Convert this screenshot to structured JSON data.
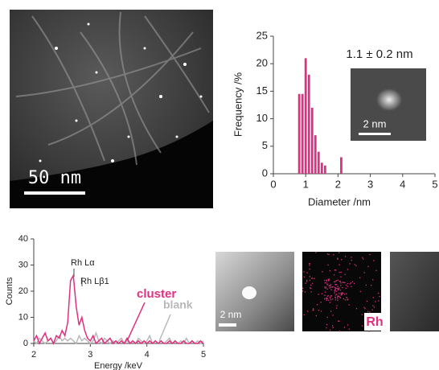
{
  "chart_data": [
    {
      "type": "histogram",
      "x_label": "Diameter /nm",
      "y_label": "Frequency /%",
      "annotation": "1.1 ± 0.2 nm",
      "inset_scale": "2 nm",
      "bins": [
        0.75,
        0.85,
        0.95,
        1.05,
        1.15,
        1.25,
        1.35,
        1.45,
        1.55,
        1.65,
        1.75,
        1.85,
        1.95,
        2.05,
        2.15
      ],
      "counts": [
        14.5,
        14.5,
        21,
        18,
        12,
        7,
        4,
        2,
        1.5,
        0,
        0,
        0,
        0,
        3
      ],
      "color": "#e0307f",
      "xlim": [
        0,
        5
      ],
      "xticks": [
        0,
        1,
        2,
        3,
        4,
        5
      ],
      "ylim": [
        0,
        25
      ],
      "yticks": [
        0,
        5,
        10,
        15,
        20,
        25
      ]
    },
    {
      "type": "line",
      "x_label": "Energy /keV",
      "y_label": "Counts",
      "annotations": [
        "Rh Lα",
        "Rh Lβ1",
        "cluster",
        "blank"
      ],
      "x": [
        2.0,
        2.05,
        2.1,
        2.15,
        2.2,
        2.25,
        2.3,
        2.35,
        2.4,
        2.45,
        2.5,
        2.55,
        2.6,
        2.65,
        2.7,
        2.75,
        2.8,
        2.85,
        2.9,
        2.95,
        3.0,
        3.05,
        3.1,
        3.15,
        3.2,
        3.25,
        3.3,
        3.35,
        3.4,
        3.45,
        3.5,
        3.55,
        3.6,
        3.65,
        3.7,
        3.75,
        3.8,
        3.85,
        3.9,
        3.95,
        4.0,
        4.05,
        4.1,
        4.15,
        4.2,
        4.25,
        4.3,
        4.35,
        4.4,
        4.45,
        4.5,
        4.55,
        4.6,
        4.65,
        4.7,
        4.75,
        4.8,
        4.85,
        4.9,
        4.95,
        5.0
      ],
      "series": [
        {
          "name": "blank",
          "color": "#b8b8b8",
          "values": [
            1,
            0,
            2,
            1,
            0,
            1,
            2,
            0,
            1,
            3,
            1,
            2,
            1,
            2,
            1,
            0,
            3,
            1,
            2,
            1,
            0,
            1,
            4,
            1,
            0,
            2,
            1,
            0,
            1,
            0,
            1,
            2,
            0,
            1,
            0,
            1,
            0,
            2,
            1,
            0,
            1,
            3,
            0,
            1,
            0,
            1,
            0,
            1,
            2,
            0,
            1,
            0,
            1,
            0,
            2,
            0,
            1,
            0,
            1,
            0,
            1
          ]
        },
        {
          "name": "cluster",
          "color": "#e0307f",
          "values": [
            1,
            3,
            0,
            2,
            4,
            1,
            2,
            0,
            3,
            2,
            5,
            3,
            8,
            24,
            26,
            14,
            7,
            10,
            5,
            2,
            1,
            3,
            0,
            1,
            2,
            0,
            1,
            2,
            0,
            1,
            0,
            1,
            0,
            2,
            0,
            1,
            0,
            1,
            0,
            1,
            0,
            1,
            0,
            1,
            0,
            1,
            0,
            0,
            1,
            0,
            1,
            0,
            0,
            1,
            0,
            0,
            1,
            0,
            0,
            1,
            0
          ]
        }
      ],
      "xlim": [
        2,
        5
      ],
      "xticks": [
        2,
        3,
        4,
        5
      ],
      "ylim": [
        0,
        40
      ],
      "yticks": [
        0,
        10,
        20,
        30,
        40
      ]
    }
  ],
  "images": {
    "stem_scale": "50 nm",
    "map_scale": "2 nm",
    "map_label": "Rh"
  }
}
